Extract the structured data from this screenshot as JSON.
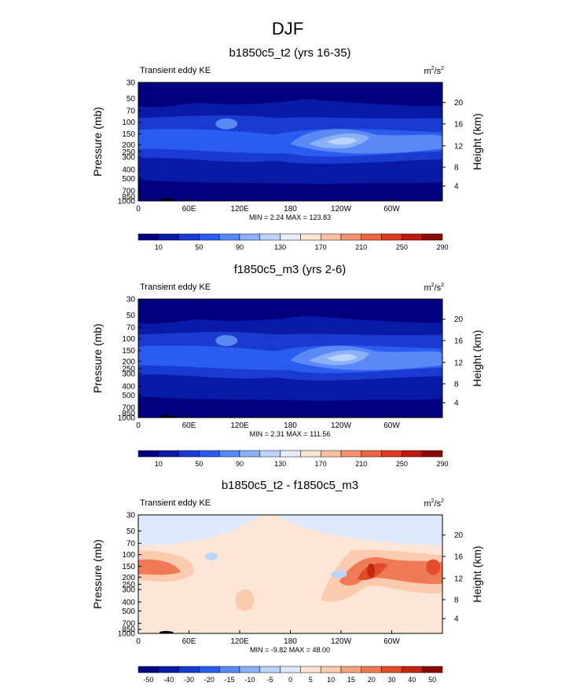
{
  "main_title": "DJF",
  "colors": {
    "abs_palette": [
      "#00007f",
      "#0a1aa8",
      "#1a3bd0",
      "#2a5cf0",
      "#5a88f5",
      "#8ab0f8",
      "#bad4fb",
      "#e6eefd",
      "#fde3d0",
      "#f9c0a0",
      "#f49370",
      "#ec6640",
      "#de3a20",
      "#c01a10",
      "#8c0a04"
    ],
    "diff_palette": [
      "#00007f",
      "#0a1aa8",
      "#1a3bd0",
      "#2a5cf0",
      "#5a88f5",
      "#8ab0f8",
      "#bad4fb",
      "#dde8fc",
      "#fde6d6",
      "#fbcbb0",
      "#f6a480",
      "#ef7a55",
      "#e24c2a",
      "#c42612",
      "#8c0a04"
    ]
  },
  "chart_data": [
    {
      "type": "heatmap",
      "title": "b1850c5_t2 (yrs 16-35)",
      "subtitle_left": "Transient eddy KE",
      "units_base": "m",
      "units_exp_num": "2",
      "units_sep": "/s",
      "units_exp_den": "2",
      "ylabel": "Pressure (mb)",
      "ylabel_right": "Height (km)",
      "x_ticks": [
        "0",
        "60E",
        "120E",
        "180",
        "120W",
        "60W"
      ],
      "y_ticks": [
        "30",
        "50",
        "70",
        "100",
        "150",
        "200",
        "250",
        "300",
        "400",
        "500",
        "700",
        "850",
        "1000"
      ],
      "y_right_ticks": [
        "20",
        "16",
        "12",
        "8",
        "4"
      ],
      "minmax_text": "MIN =   2.24  MAX = 123.83",
      "colorbar_labels": [
        "10",
        "50",
        "90",
        "130",
        "170",
        "210",
        "250",
        "290"
      ],
      "palette": "abs"
    },
    {
      "type": "heatmap",
      "title": "f1850c5_m3 (yrs 2-6)",
      "subtitle_left": "Transient eddy KE",
      "units_base": "m",
      "units_exp_num": "2",
      "units_sep": "/s",
      "units_exp_den": "2",
      "ylabel": "Pressure (mb)",
      "ylabel_right": "Height (km)",
      "x_ticks": [
        "0",
        "60E",
        "120E",
        "180",
        "120W",
        "60W"
      ],
      "y_ticks": [
        "30",
        "50",
        "70",
        "100",
        "150",
        "200",
        "250",
        "300",
        "400",
        "500",
        "700",
        "850",
        "1000"
      ],
      "y_right_ticks": [
        "20",
        "16",
        "12",
        "8",
        "4"
      ],
      "minmax_text": "MIN =   2.31  MAX = 111.56",
      "colorbar_labels": [
        "10",
        "50",
        "90",
        "130",
        "170",
        "210",
        "250",
        "290"
      ],
      "palette": "abs"
    },
    {
      "type": "heatmap",
      "title": "b1850c5_t2 - f1850c5_m3",
      "subtitle_left": "Transient eddy KE",
      "units_base": "m",
      "units_exp_num": "2",
      "units_sep": "/s",
      "units_exp_den": "2",
      "ylabel": "Pressure (mb)",
      "ylabel_right": "Height (km)",
      "x_ticks": [
        "0",
        "60E",
        "120E",
        "180",
        "120W",
        "60W"
      ],
      "y_ticks": [
        "30",
        "50",
        "70",
        "100",
        "150",
        "200",
        "250",
        "300",
        "400",
        "500",
        "700",
        "850",
        "1000"
      ],
      "y_right_ticks": [
        "20",
        "16",
        "12",
        "8",
        "4"
      ],
      "minmax_text": "MIN =  -9.82  MAX =  48.00",
      "colorbar_labels": [
        "-50",
        "-40",
        "-30",
        "-20",
        "-15",
        "-10",
        "-5",
        "0",
        "5",
        "10",
        "15",
        "20",
        "30",
        "40",
        "50"
      ],
      "palette": "diff"
    }
  ]
}
